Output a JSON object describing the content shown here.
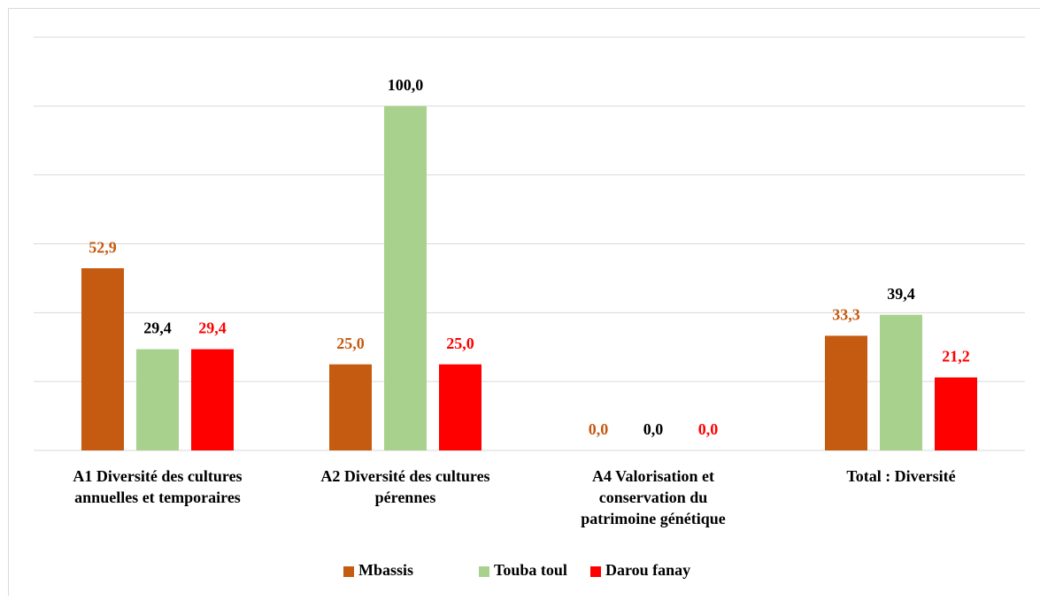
{
  "chart_data": {
    "type": "bar",
    "categories": [
      [
        "A1 Diversité des cultures",
        "annuelles et temporaires"
      ],
      [
        "A2 Diversité des cultures",
        "pérennes"
      ],
      [
        "A4 Valorisation et",
        "conservation du",
        "patrimoine génétique"
      ],
      [
        "Total : Diversité"
      ]
    ],
    "series": [
      {
        "name": "Mbassis",
        "color": "#c55a11",
        "label_color": "#c55a11",
        "values": [
          52.9,
          25.0,
          0.0,
          33.3
        ],
        "value_labels": [
          "52,9",
          "25,0",
          "0,0",
          "33,3"
        ]
      },
      {
        "name": "Touba toul",
        "color": "#a9d18e",
        "label_color": "#000000",
        "values": [
          29.4,
          100.0,
          0.0,
          39.4
        ],
        "value_labels": [
          "29,4",
          "100,0",
          "0,0",
          "39,4"
        ]
      },
      {
        "name": "Darou fanay",
        "color": "#ff0000",
        "label_color": "#ff0000",
        "values": [
          29.4,
          25.0,
          0.0,
          21.2
        ],
        "value_labels": [
          "29,4",
          "25,0",
          "0,0",
          "21,2"
        ]
      }
    ],
    "ylim": [
      0,
      120
    ],
    "yticks": [
      0,
      20,
      40,
      60,
      80,
      100,
      120
    ],
    "grid": true,
    "legend": "bottom"
  }
}
